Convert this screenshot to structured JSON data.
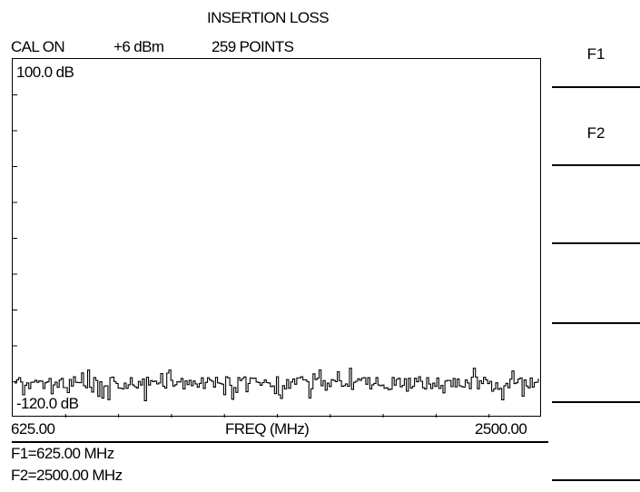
{
  "header": {
    "title": "INSERTION LOSS",
    "cal_status": "CAL ON",
    "power": "+6 dBm",
    "points": "259 POINTS"
  },
  "plot": {
    "top_ref": "100.0 dB",
    "bottom_ref": "-120.0 dB",
    "x_start": "625.00",
    "x_label": "FREQ (MHz)",
    "x_stop": "2500.00",
    "trace_color": "#000000"
  },
  "markers": {
    "f1": "F1=625.00 MHz",
    "f2": "F2=2500.00 MHz"
  },
  "softkeys": [
    {
      "label": "F1"
    },
    {
      "label": "F2"
    },
    {
      "label": ""
    },
    {
      "label": ""
    },
    {
      "label": ""
    },
    {
      "label": ""
    }
  ]
}
